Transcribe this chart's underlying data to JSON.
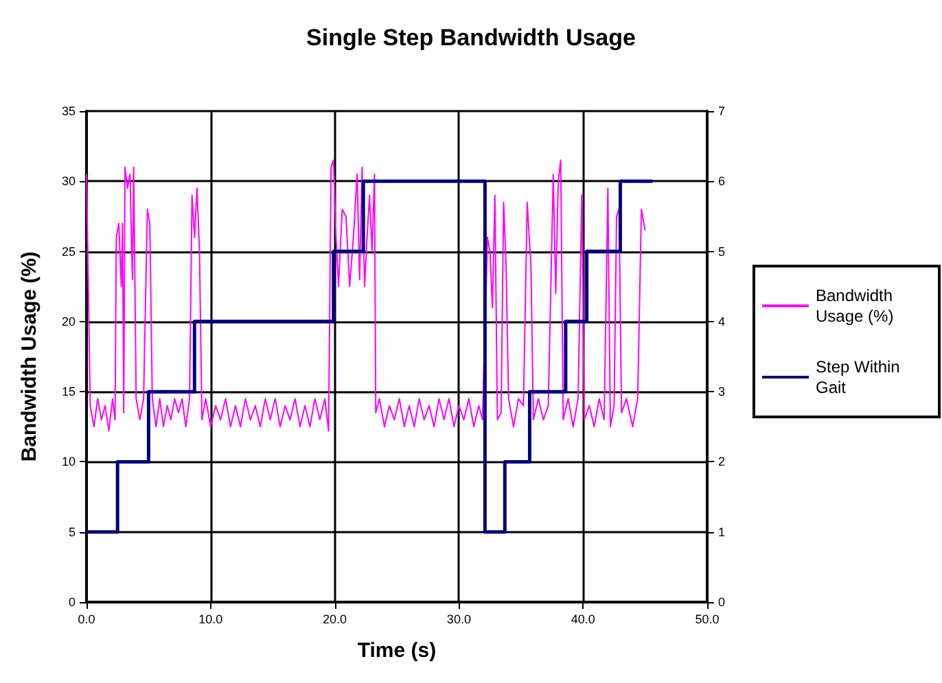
{
  "chart_data": {
    "type": "line",
    "title": "Single Step Bandwidth Usage",
    "xlabel": "Time (s)",
    "ylabel": "Bandwidth Usage (%)",
    "xlim": [
      0,
      50
    ],
    "xticks": [
      {
        "value": 0,
        "label": "0.0"
      },
      {
        "value": 10,
        "label": "10.0"
      },
      {
        "value": 20,
        "label": "20.0"
      },
      {
        "value": 30,
        "label": "30.0"
      },
      {
        "value": 40,
        "label": "40.0"
      },
      {
        "value": 50,
        "label": "50.0"
      }
    ],
    "ylim": [
      0,
      35
    ],
    "yticks": [
      0,
      5,
      10,
      15,
      20,
      25,
      30,
      35
    ],
    "y2lim": [
      0,
      7
    ],
    "y2ticks": [
      0,
      1,
      2,
      3,
      4,
      5,
      6,
      7
    ],
    "grid": true,
    "legend": "right",
    "marker": "none",
    "series": [
      {
        "name": "Bandwidth Usage (%)",
        "type": "line",
        "color": "#ff00ff",
        "x": [
          0,
          0.3,
          0.6,
          0.9,
          1.2,
          1.5,
          1.8,
          2.1,
          2.3,
          2.4,
          2.6,
          2.8,
          2.9,
          3.0,
          3.1,
          3.3,
          3.5,
          3.7,
          3.8,
          4.0,
          4.3,
          4.6,
          4.9,
          5.1,
          5.3,
          5.6,
          5.9,
          6.2,
          6.5,
          6.8,
          7.1,
          7.4,
          7.7,
          8.0,
          8.3,
          8.5,
          8.7,
          8.9,
          9.1,
          9.3,
          9.6,
          10.0,
          10.4,
          10.8,
          11.2,
          11.6,
          12.0,
          12.4,
          12.8,
          13.2,
          13.6,
          14.0,
          14.4,
          14.8,
          15.2,
          15.6,
          16.0,
          16.4,
          16.8,
          17.2,
          17.6,
          18.0,
          18.4,
          18.8,
          19.2,
          19.5,
          19.7,
          19.9,
          20.1,
          20.3,
          20.6,
          20.9,
          21.2,
          21.5,
          21.8,
          22.0,
          22.2,
          22.4,
          22.6,
          22.8,
          23.0,
          23.2,
          23.3,
          23.6,
          24.0,
          24.4,
          24.8,
          25.2,
          25.6,
          26.0,
          26.4,
          26.8,
          27.2,
          27.6,
          28.0,
          28.4,
          28.8,
          29.2,
          29.6,
          30.0,
          30.4,
          30.8,
          31.2,
          31.6,
          31.9,
          32.3,
          32.5,
          32.7,
          32.9,
          33.1,
          33.4,
          33.6,
          33.8,
          34.0,
          34.4,
          34.8,
          35.2,
          35.5,
          35.8,
          36.0,
          36.4,
          36.8,
          37.2,
          37.6,
          37.8,
          38.0,
          38.2,
          38.4,
          38.8,
          39.2,
          39.6,
          39.9,
          40.1,
          40.5,
          40.9,
          41.3,
          41.7,
          42.0,
          42.2,
          42.5,
          42.7,
          42.9,
          43.1,
          43.5,
          44.0,
          44.4,
          44.7,
          45.0
        ],
        "values": [
          30.5,
          14,
          12.5,
          14.5,
          13,
          14,
          12.2,
          14.5,
          13,
          26,
          27,
          22.5,
          27,
          13.5,
          31,
          29.5,
          30.5,
          23,
          31,
          14.5,
          13,
          14.5,
          28,
          27,
          14.5,
          12.5,
          14.5,
          12.5,
          14,
          13,
          14.5,
          13.5,
          14.5,
          12.5,
          14.5,
          29,
          26,
          29.5,
          25,
          13,
          14.5,
          12.5,
          14,
          13,
          14.5,
          12.5,
          14,
          12.5,
          14.5,
          13,
          14,
          12.5,
          14.5,
          13,
          14.5,
          12.5,
          14,
          13,
          14.5,
          12.5,
          14,
          12.5,
          14.5,
          13,
          14.5,
          12.2,
          31,
          31.5,
          26,
          22.5,
          28,
          27.5,
          22.5,
          26,
          30.5,
          23,
          31,
          22.5,
          26,
          29,
          25,
          30.5,
          13.5,
          14.5,
          12.5,
          14,
          13,
          14.5,
          12.5,
          14,
          12.5,
          14.5,
          13,
          14,
          12.5,
          14.5,
          13,
          14.5,
          12.5,
          14,
          13,
          14.5,
          12.5,
          14,
          13,
          26,
          25,
          21,
          29,
          13,
          13.5,
          28.5,
          24,
          14.5,
          12.5,
          14.5,
          14,
          28.5,
          24,
          13,
          14.5,
          13,
          14,
          30.5,
          22,
          30,
          31.5,
          13,
          14.5,
          12.5,
          14.5,
          29,
          13,
          14,
          12.5,
          14.5,
          13,
          29.5,
          12.5,
          14,
          27.5,
          28,
          13.5,
          14.5,
          12.5,
          14.5,
          28,
          26.5
        ]
      },
      {
        "name": "Step Within Gait",
        "type": "step",
        "axis": "y2",
        "color": "#000080",
        "x": [
          0,
          2.5,
          5.0,
          8.7,
          19.9,
          22.3,
          32.1,
          33.7,
          35.7,
          38.6,
          40.3,
          43.0,
          45.6
        ],
        "values": [
          1,
          2,
          3,
          4,
          5,
          6,
          1,
          2,
          3,
          4,
          5,
          6,
          6
        ]
      }
    ]
  }
}
